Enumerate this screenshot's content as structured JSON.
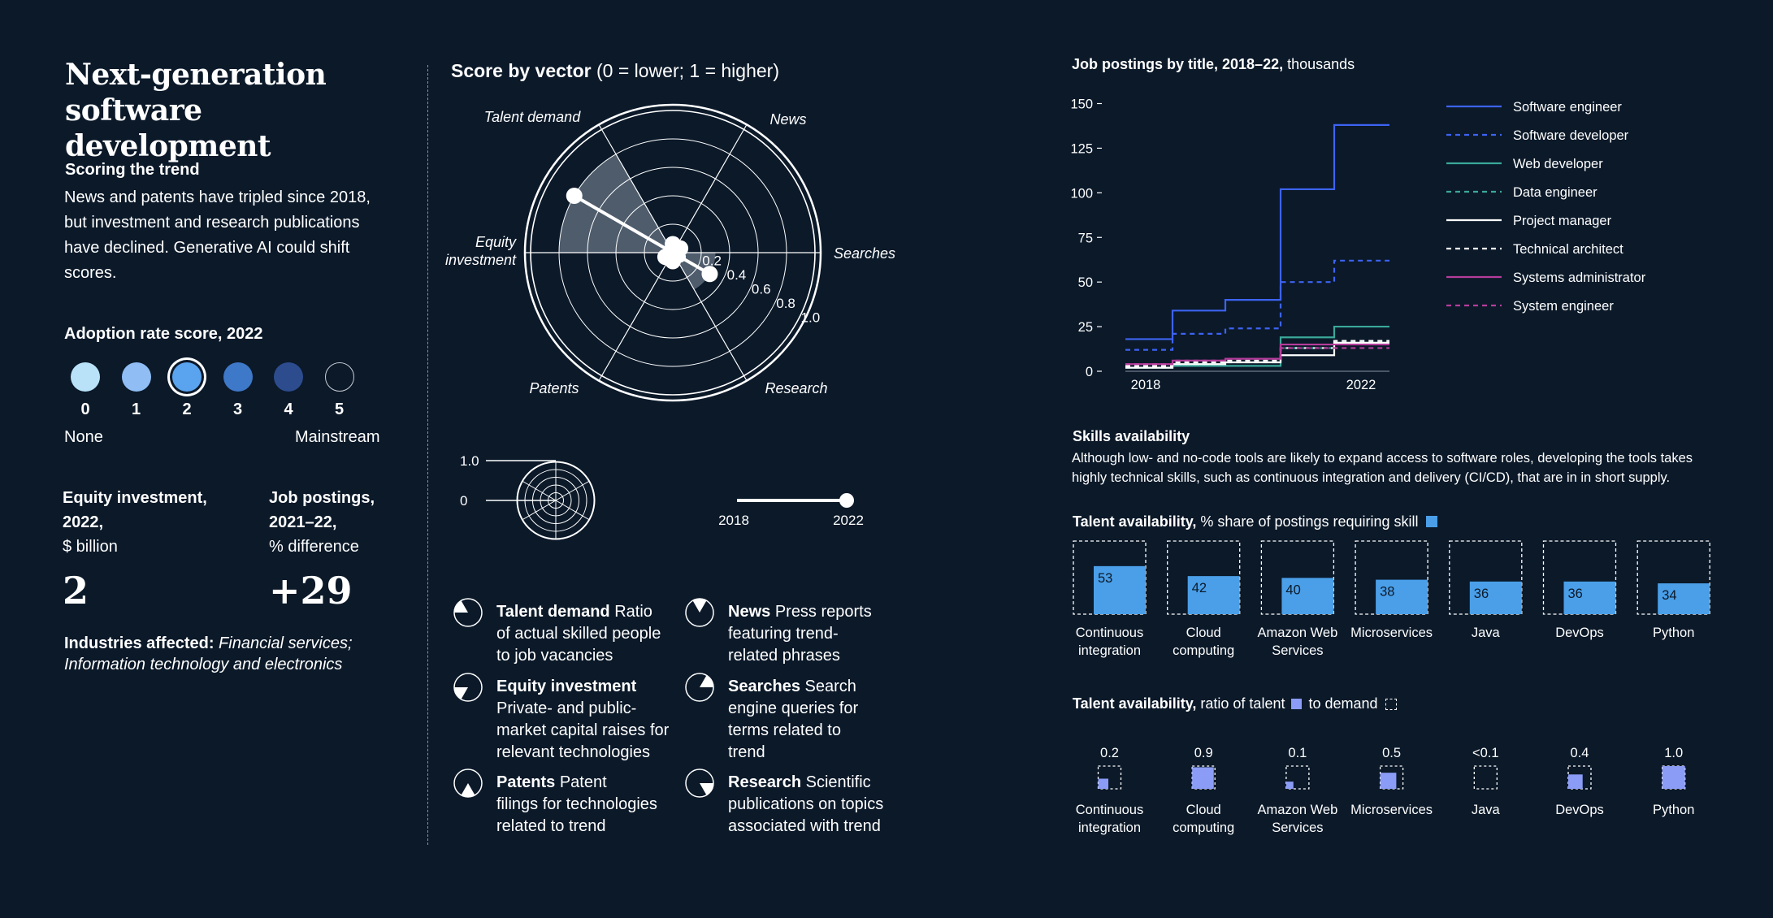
{
  "title": "Next-generation software development",
  "scoring": {
    "heading": "Scoring the trend",
    "text": "News and patents have tripled since 2018, but investment and research publications have declined. Generative AI could shift scores."
  },
  "adoption": {
    "heading": "Adoption rate score, 2022",
    "scores": [
      "0",
      "1",
      "2",
      "3",
      "4",
      "5"
    ],
    "selected": 2,
    "colors": [
      "#b9e2f9",
      "#8fbdf4",
      "#5aa3ee",
      "#3e78c8",
      "#2c4c8e",
      "#0b1929"
    ],
    "low_label": "None",
    "high_label": "Mainstream"
  },
  "equity": {
    "label1": "Equity investment,",
    "label2": "2022,",
    "label3": "$ billion",
    "value": "2"
  },
  "jobs": {
    "label1": "Job postings,",
    "label2": "2021–22,",
    "label3": "% difference",
    "value": "+29"
  },
  "industries": {
    "label": "Industries affected:",
    "value": "Financial services; Information technology and electronics"
  },
  "radar": {
    "title": "Score by vector",
    "subtitle": "(0 = lower; 1 = higher)",
    "vectors": [
      "Talent demand",
      "News",
      "Searches",
      "Research",
      "Patents",
      "Equity investment"
    ],
    "ring_labels": [
      "0.2",
      "0.4",
      "0.6",
      "0.8",
      "1.0"
    ],
    "values_2018": [
      0.03,
      0.06,
      0.06,
      0.06,
      0.06,
      0.06
    ],
    "values_2022": [
      0.8,
      0.06,
      0.06,
      0.3,
      0.06,
      0.06
    ],
    "mini_labels": {
      "top": "1.0",
      "bottom": "0"
    },
    "slider": {
      "start": "2018",
      "end": "2022",
      "value": 1.0
    }
  },
  "vector_legend": [
    {
      "name": "Talent demand",
      "desc": "Ratio of actual skilled people to job vacancies",
      "line1": "Ratio",
      "line2": "of actual skilled people",
      "line3": "to job vacancies",
      "icon": "talent-demand-icon"
    },
    {
      "name": "News",
      "desc": "Press reports featuring trend-related phrases",
      "line1": "Press reports",
      "line2": "featuring trend-",
      "line3": "related phrases",
      "icon": "news-icon"
    },
    {
      "name": "Equity investment",
      "desc": "Private- and public-market capital raises for relevant technologies",
      "line1": "",
      "line2": "Private- and public-",
      "line3": "market capital raises for",
      "line4": "relevant technologies",
      "icon": "equity-investment-icon"
    },
    {
      "name": "Searches",
      "desc": "Search engine queries for terms related to trend",
      "line1": "Search",
      "line2": "engine queries for",
      "line3": "terms related to",
      "line4": "trend",
      "icon": "searches-icon"
    },
    {
      "name": "Patents",
      "desc": "Patent filings for technologies related to trend",
      "line1": "Patent",
      "line2": "filings for technologies",
      "line3": "related to trend",
      "icon": "patents-icon"
    },
    {
      "name": "Research",
      "desc": "Scientific publications on topics associated with trend",
      "line1": "Scientific",
      "line2": "publications on topics",
      "line3": "associated with trend",
      "icon": "research-icon"
    }
  ],
  "chart_data": [
    {
      "type": "line",
      "title": "Job postings by title, 2018–22,",
      "units": "thousands",
      "x": [
        2018,
        2019,
        2020,
        2021,
        2022
      ],
      "xtick_labels": [
        "2018",
        "2022"
      ],
      "ylim": [
        0,
        150
      ],
      "yticks": [
        "150",
        "125",
        "100",
        "75",
        "50",
        "25",
        "0"
      ],
      "ytick_values": [
        150,
        125,
        100,
        75,
        50,
        25,
        0
      ],
      "series": [
        {
          "name": "Software engineer",
          "color": "#3d63f2",
          "style": "solid",
          "values": [
            18,
            34,
            40,
            102,
            138
          ]
        },
        {
          "name": "Software developer",
          "color": "#3d63f2",
          "style": "dashed",
          "values": [
            12,
            21,
            24,
            50,
            62
          ]
        },
        {
          "name": "Web developer",
          "color": "#3aa89a",
          "style": "solid",
          "values": [
            2,
            3,
            3,
            19,
            25
          ]
        },
        {
          "name": "Data engineer",
          "color": "#3aa89a",
          "style": "dashed",
          "values": [
            2,
            4,
            5,
            13,
            16
          ]
        },
        {
          "name": "Project manager",
          "color": "#ffffff",
          "style": "solid",
          "values": [
            2,
            4,
            5,
            9,
            16
          ]
        },
        {
          "name": "Technical architect",
          "color": "#ffffff",
          "style": "dashed",
          "values": [
            3,
            5,
            6,
            13,
            17
          ]
        },
        {
          "name": "Systems administrator",
          "color": "#b53d9b",
          "style": "solid",
          "values": [
            4,
            6,
            7,
            15,
            15
          ]
        },
        {
          "name": "System engineer",
          "color": "#b53d9b",
          "style": "dashed",
          "values": [
            4,
            6,
            7,
            13,
            13
          ]
        }
      ]
    },
    {
      "type": "bar",
      "title": "Talent availability,",
      "subtitle": "% share of postings requiring skill",
      "categories": [
        "Continuous integration",
        "Cloud computing",
        "Amazon Web Services",
        "Microservices",
        "Java",
        "DevOps",
        "Python"
      ],
      "values": [
        53,
        42,
        40,
        38,
        36,
        36,
        34
      ],
      "labels": [
        "53",
        "42",
        "40",
        "38",
        "36",
        "36",
        "34"
      ],
      "ylim": [
        0,
        100
      ],
      "color": "#4a9fe8"
    },
    {
      "type": "bar",
      "title": "Talent availability,",
      "subtitle_a": "ratio of talent",
      "subtitle_b": "to demand",
      "categories": [
        "Continuous integration",
        "Cloud computing",
        "Amazon Web Services",
        "Microservices",
        "Java",
        "DevOps",
        "Python"
      ],
      "values": [
        0.2,
        0.9,
        0.1,
        0.5,
        0.05,
        0.4,
        1.0
      ],
      "labels": [
        "0.2",
        "0.9",
        "0.1",
        "0.5",
        "<0.1",
        "0.4",
        "1.0"
      ],
      "color": "#8b9cf7"
    }
  ],
  "skills": {
    "heading": "Skills availability",
    "text": "Although low- and no-code tools are likely to expand access to software roles, developing the tools takes highly technical skills, such as continuous integration and delivery (CI/CD), that are in in short supply."
  },
  "categories_lines": [
    [
      "Continuous",
      "integration"
    ],
    [
      "Cloud",
      "computing"
    ],
    [
      "Amazon Web",
      "Services"
    ],
    [
      "Microservices"
    ],
    [
      "Java"
    ],
    [
      "DevOps"
    ],
    [
      "Python"
    ]
  ]
}
